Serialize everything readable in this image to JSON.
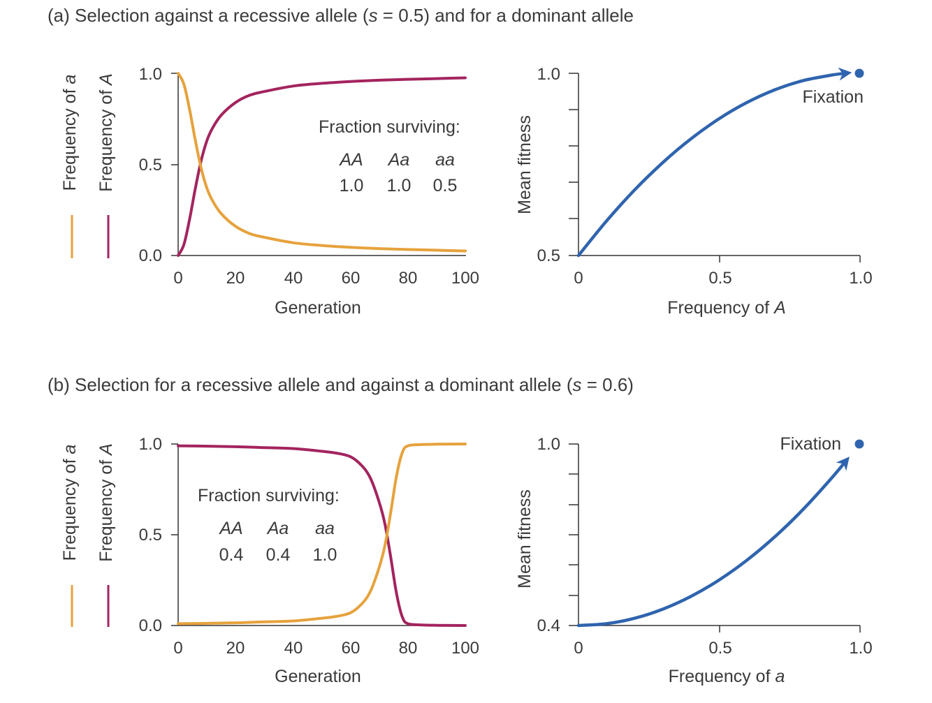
{
  "colors": {
    "A": "#a3245e",
    "a": "#e6a23c",
    "fitness": "#2f64ae"
  },
  "panels": [
    {
      "title": "(a) Selection against a recessive allele (s = 0.5) and for a dominant allele",
      "title_parts": {
        "pre": "(a) Selection against a recessive allele (",
        "s": "s",
        "post": " = 0.5) and for a dominant allele"
      },
      "freq_chart": {
        "type": "line",
        "xlabel": "Generation",
        "ylabel_a_pre": "Frequency of ",
        "ylabel_a_sym": "a",
        "ylabel_A_pre": "Frequency of ",
        "ylabel_A_sym": "A",
        "xlim": [
          0,
          100
        ],
        "ylim": [
          0,
          1
        ],
        "xticks": [
          "0",
          "20",
          "40",
          "60",
          "80",
          "100"
        ],
        "yticks": [
          "0.0",
          "0.5",
          "1.0"
        ],
        "x": [
          0,
          2,
          4,
          6,
          8,
          10,
          12,
          15,
          20,
          25,
          30,
          40,
          50,
          60,
          70,
          80,
          90,
          100
        ],
        "series": [
          {
            "id": "A",
            "values": [
              0.0,
              0.06,
              0.2,
              0.37,
              0.52,
              0.63,
              0.7,
              0.77,
              0.84,
              0.88,
              0.9,
              0.93,
              0.945,
              0.955,
              0.962,
              0.967,
              0.971,
              0.975
            ]
          },
          {
            "id": "a",
            "values": [
              1.0,
              0.94,
              0.8,
              0.63,
              0.48,
              0.37,
              0.3,
              0.23,
              0.16,
              0.12,
              0.1,
              0.07,
              0.055,
              0.045,
              0.038,
              0.033,
              0.029,
              0.025
            ]
          }
        ],
        "inset": {
          "heading": "Fraction surviving:",
          "genotypes": [
            "AA",
            "Aa",
            "aa"
          ],
          "values": [
            "1.0",
            "1.0",
            "0.5"
          ]
        }
      },
      "fitness_chart": {
        "type": "line",
        "xlabel_pre": "Frequency of ",
        "xlabel_sym": "A",
        "ylabel": "Mean fitness",
        "xlim": [
          0,
          1
        ],
        "ylim": [
          0.5,
          1.0
        ],
        "xticks": [
          "0",
          "0.5",
          "1.0"
        ],
        "yticks": [
          "0.5",
          "1.0"
        ],
        "x": [
          0,
          0.1,
          0.2,
          0.3,
          0.4,
          0.5,
          0.6,
          0.7,
          0.8,
          0.9,
          0.95
        ],
        "values": [
          0.5,
          0.595,
          0.68,
          0.755,
          0.82,
          0.875,
          0.92,
          0.955,
          0.98,
          0.995,
          1.0
        ],
        "endpoint": {
          "x": 1.0,
          "y": 1.0
        },
        "annotation": "Fixation"
      }
    },
    {
      "title": "(b) Selection for a recessive allele and against a dominant allele (s = 0.6)",
      "title_parts": {
        "pre": "(b) Selection for a recessive allele and against a dominant allele (",
        "s": "s",
        "post": " = 0.6)"
      },
      "freq_chart": {
        "type": "line",
        "xlabel": "Generation",
        "ylabel_a_pre": "Frequency of ",
        "ylabel_a_sym": "a",
        "ylabel_A_pre": "Frequency of ",
        "ylabel_A_sym": "A",
        "xlim": [
          0,
          100
        ],
        "ylim": [
          0,
          1
        ],
        "xticks": [
          "0",
          "20",
          "40",
          "60",
          "80",
          "100"
        ],
        "yticks": [
          "0.0",
          "0.5",
          "1.0"
        ],
        "x": [
          0,
          10,
          20,
          30,
          40,
          50,
          55,
          60,
          64,
          67,
          70,
          72,
          74,
          76,
          78,
          80,
          85,
          90,
          100
        ],
        "series": [
          {
            "id": "A",
            "values": [
              0.99,
              0.988,
              0.985,
              0.98,
              0.975,
              0.96,
              0.95,
              0.93,
              0.88,
              0.81,
              0.68,
              0.56,
              0.38,
              0.18,
              0.05,
              0.01,
              0.003,
              0.001,
              0.0
            ]
          },
          {
            "id": "a",
            "values": [
              0.01,
              0.012,
              0.015,
              0.02,
              0.025,
              0.04,
              0.05,
              0.07,
              0.12,
              0.19,
              0.32,
              0.44,
              0.62,
              0.82,
              0.95,
              0.99,
              0.997,
              0.999,
              1.0
            ]
          }
        ],
        "inset": {
          "heading": "Fraction surviving:",
          "genotypes": [
            "AA",
            "Aa",
            "aa"
          ],
          "values": [
            "0.4",
            "0.4",
            "1.0"
          ]
        }
      },
      "fitness_chart": {
        "type": "line",
        "xlabel_pre": "Frequency of ",
        "xlabel_sym": "a",
        "ylabel": "Mean fitness",
        "xlim": [
          0,
          1
        ],
        "ylim": [
          0.4,
          1.0
        ],
        "xticks": [
          "0",
          "0.5",
          "1.0"
        ],
        "yticks": [
          "0.4",
          "1.0"
        ],
        "x": [
          0,
          0.1,
          0.2,
          0.3,
          0.4,
          0.5,
          0.6,
          0.7,
          0.8,
          0.9,
          0.95
        ],
        "values": [
          0.4,
          0.406,
          0.424,
          0.454,
          0.496,
          0.55,
          0.616,
          0.694,
          0.784,
          0.886,
          0.9415
        ],
        "endpoint": {
          "x": 1.0,
          "y": 1.0
        },
        "annotation": "Fixation"
      }
    }
  ]
}
